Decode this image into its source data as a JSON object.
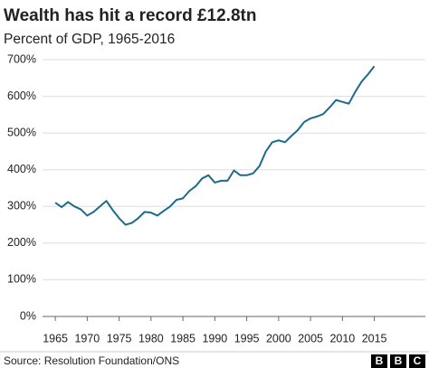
{
  "chart_data": {
    "type": "line",
    "title": "Wealth has hit a record £12.8tn",
    "subtitle": "Percent of GDP, 1965-2016",
    "x": [
      1965,
      1966,
      1967,
      1968,
      1969,
      1970,
      1971,
      1972,
      1973,
      1974,
      1975,
      1976,
      1977,
      1978,
      1979,
      1980,
      1981,
      1982,
      1983,
      1984,
      1985,
      1986,
      1987,
      1988,
      1989,
      1990,
      1991,
      1992,
      1993,
      1994,
      1995,
      1996,
      1997,
      1998,
      1999,
      2000,
      2001,
      2002,
      2003,
      2004,
      2005,
      2006,
      2007,
      2008,
      2009,
      2010,
      2011,
      2012,
      2013,
      2014,
      2015
    ],
    "values": [
      310,
      298,
      312,
      300,
      292,
      275,
      285,
      300,
      315,
      290,
      268,
      250,
      255,
      268,
      285,
      283,
      275,
      288,
      300,
      318,
      322,
      342,
      355,
      376,
      385,
      365,
      370,
      370,
      398,
      385,
      385,
      390,
      410,
      450,
      475,
      480,
      475,
      492,
      508,
      530,
      540,
      545,
      552,
      570,
      590,
      585,
      580,
      612,
      640,
      660,
      682
    ],
    "color": "#1c6b8a",
    "xlim": [
      1963,
      2023
    ],
    "xticks": [
      1965,
      1970,
      1975,
      1980,
      1985,
      1990,
      1995,
      2000,
      2005,
      2010,
      2015
    ],
    "ylim": [
      0,
      700
    ],
    "yticks": [
      {
        "value": 0,
        "label": "0%"
      },
      {
        "value": 100,
        "label": "100%"
      },
      {
        "value": 200,
        "label": "200%"
      },
      {
        "value": 300,
        "label": "300%"
      },
      {
        "value": 400,
        "label": "400%"
      },
      {
        "value": 500,
        "label": "500%"
      },
      {
        "value": 600,
        "label": "600%"
      },
      {
        "value": 700,
        "label": "700%"
      }
    ],
    "grid": true,
    "source": "Source: Resolution Foundation/ONS",
    "logo": [
      "B",
      "B",
      "C"
    ]
  }
}
